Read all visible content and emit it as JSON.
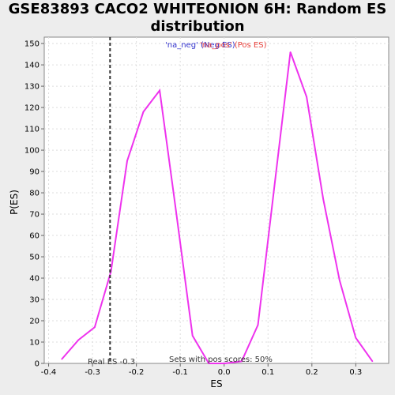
{
  "chart_data": {
    "type": "line",
    "title_lines": [
      "GSE83893 CACO2 WHITEONION 6H: Random ES",
      "distribution"
    ],
    "xlabel": "ES",
    "ylabel": "P(ES)",
    "xlim": [
      -0.41,
      0.375
    ],
    "ylim": [
      0,
      153
    ],
    "xticks": [
      -0.4,
      -0.3,
      -0.2,
      -0.1,
      0.0,
      0.1,
      0.2,
      0.3
    ],
    "xtick_labels": [
      "-0.4",
      "-0.3",
      "-0.2",
      "-0.1",
      "0.0",
      "0.1",
      "0.2",
      "0.3"
    ],
    "yticks": [
      0,
      10,
      20,
      30,
      40,
      50,
      60,
      70,
      80,
      90,
      100,
      110,
      120,
      130,
      140,
      150
    ],
    "ytick_labels": [
      "0",
      "10",
      "20",
      "30",
      "40",
      "50",
      "60",
      "70",
      "80",
      "90",
      "100",
      "110",
      "120",
      "130",
      "140",
      "150"
    ],
    "grid": true,
    "series": [
      {
        "name": "P(ES)",
        "color": "#ee33ee",
        "x": [
          -0.37,
          -0.332,
          -0.295,
          -0.258,
          -0.221,
          -0.184,
          -0.147,
          -0.11,
          -0.072,
          -0.035,
          0.002,
          0.04,
          0.077,
          0.114,
          0.151,
          0.188,
          0.226,
          0.263,
          0.3,
          0.338
        ],
        "values": [
          2,
          11,
          17,
          43,
          95,
          118,
          128,
          72,
          13,
          0,
          0,
          1,
          18,
          82,
          146,
          125,
          77,
          39,
          12,
          1
        ]
      }
    ],
    "real_es": {
      "value": -0.26,
      "label": "Real ES -0.3",
      "color": "#333333"
    },
    "legend": {
      "neg_label": "'na_neg' (Neg ES)",
      "pos_label": "'na_pos' (Pos ES)",
      "neg_color": "#3333cc",
      "pos_color": "#e8413c",
      "placement": "top-center"
    },
    "footer_annotation": "Sets with pos scores: 50%"
  }
}
